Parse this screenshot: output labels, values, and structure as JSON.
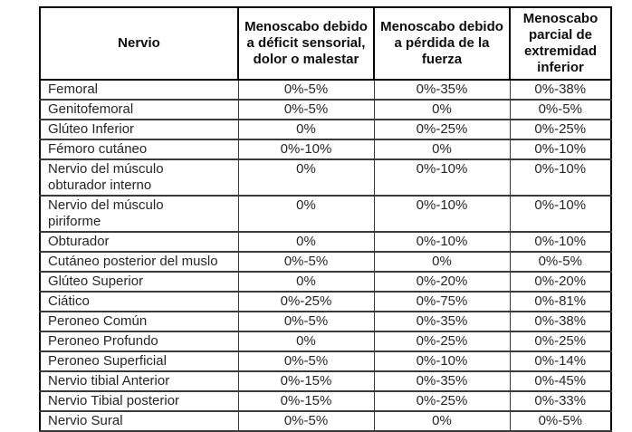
{
  "table": {
    "columns": [
      {
        "label": "Nervio"
      },
      {
        "label": "Menoscabo debido\na déficit sensorial,\ndolor o malestar"
      },
      {
        "label": "Menoscabo debido\na pérdida de la\nfuerza"
      },
      {
        "label": "Menoscabo\nparcial de\nextremidad\ninferior"
      }
    ],
    "rows": [
      {
        "nerve": "Femoral",
        "sensory_pain": "0%-5%",
        "strength_loss": "0%-35%",
        "partial_lower_limb": "0%-38%"
      },
      {
        "nerve": "Genitofemoral",
        "sensory_pain": "0%-5%",
        "strength_loss": "0%",
        "partial_lower_limb": "0%-5%"
      },
      {
        "nerve": "Glúteo Inferior",
        "sensory_pain": "0%",
        "strength_loss": "0%-25%",
        "partial_lower_limb": "0%-25%"
      },
      {
        "nerve": "Fémoro cutáneo",
        "sensory_pain": "0%-10%",
        "strength_loss": "0%",
        "partial_lower_limb": "0%-10%"
      },
      {
        "nerve": "Nervio del músculo\nobturador interno",
        "sensory_pain": "0%",
        "strength_loss": "0%-10%",
        "partial_lower_limb": "0%-10%"
      },
      {
        "nerve": "Nervio del músculo\npiriforme",
        "sensory_pain": "0%",
        "strength_loss": "0%-10%",
        "partial_lower_limb": "0%-10%"
      },
      {
        "nerve": "Obturador",
        "sensory_pain": "0%",
        "strength_loss": "0%-10%",
        "partial_lower_limb": "0%-10%"
      },
      {
        "nerve": "Cutáneo posterior del muslo",
        "sensory_pain": "0%-5%",
        "strength_loss": "0%",
        "partial_lower_limb": "0%-5%"
      },
      {
        "nerve": "Glúteo Superior",
        "sensory_pain": "0%",
        "strength_loss": "0%-20%",
        "partial_lower_limb": "0%-20%"
      },
      {
        "nerve": "Ciático",
        "sensory_pain": "0%-25%",
        "strength_loss": "0%-75%",
        "partial_lower_limb": "0%-81%"
      },
      {
        "nerve": "Peroneo Común",
        "sensory_pain": "0%-5%",
        "strength_loss": "0%-35%",
        "partial_lower_limb": "0%-38%"
      },
      {
        "nerve": "Peroneo Profundo",
        "sensory_pain": "0%",
        "strength_loss": "0%-25%",
        "partial_lower_limb": "0%-25%"
      },
      {
        "nerve": "Peroneo Superficial",
        "sensory_pain": "0%-5%",
        "strength_loss": "0%-10%",
        "partial_lower_limb": "0%-14%"
      },
      {
        "nerve": "Nervio tibial Anterior",
        "sensory_pain": "0%-15%",
        "strength_loss": "0%-35%",
        "partial_lower_limb": "0%-45%"
      },
      {
        "nerve": "Nervio Tibial posterior",
        "sensory_pain": "0%-15%",
        "strength_loss": "0%-25%",
        "partial_lower_limb": "0%-33%"
      },
      {
        "nerve": "Nervio Sural",
        "sensory_pain": "0%-5%",
        "strength_loss": "0%",
        "partial_lower_limb": "0%-5%"
      }
    ]
  },
  "colors": {
    "background": "#ffffff",
    "outer_border": "#000000",
    "inner_border": "#3a3a3a",
    "text": "#262626"
  }
}
